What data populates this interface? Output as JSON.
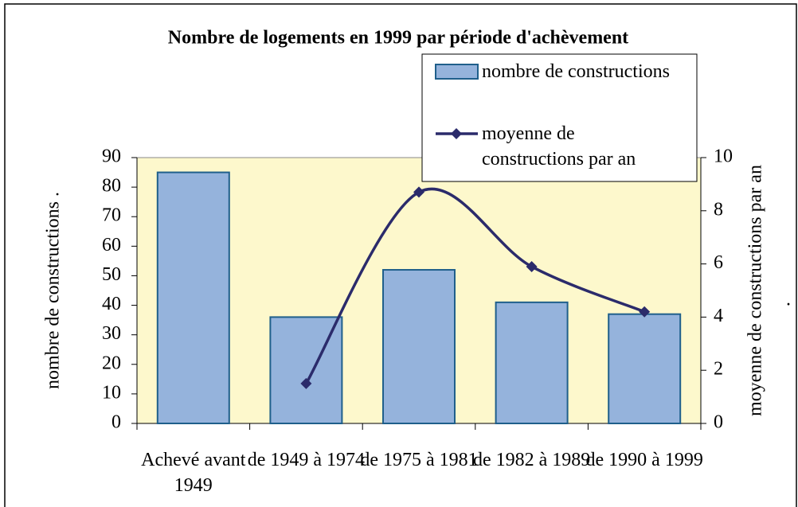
{
  "chart_data": {
    "type": "bar",
    "title": "Nombre de logements en 1999 par période d'achèvement",
    "categories": [
      "Achevé avant 1949",
      "de 1949 à 1974",
      "de 1975 à 1981",
      "de 1982 à 1989",
      "de 1990 à 1999"
    ],
    "series": [
      {
        "name": "nombre de constructions",
        "color": "#95b3dc",
        "values": [
          85,
          36,
          52,
          41,
          37
        ]
      },
      {
        "name": "moyenne de constructions par an",
        "color": "#2b2b6b",
        "axis": "y2",
        "type": "line",
        "values": [
          null,
          1.5,
          8.7,
          5.9,
          4.2
        ]
      }
    ],
    "ylabel": "nombre de constructions .",
    "y2label": "moyenne de constructions par an",
    "annotation": ".",
    "ylim": [
      0,
      90
    ],
    "yticks": [
      0,
      10,
      20,
      30,
      40,
      50,
      60,
      70,
      80,
      90
    ],
    "y2lim": [
      0,
      10
    ],
    "y2ticks": [
      0,
      2,
      4,
      6,
      8,
      10
    ],
    "legend": "top-right"
  }
}
